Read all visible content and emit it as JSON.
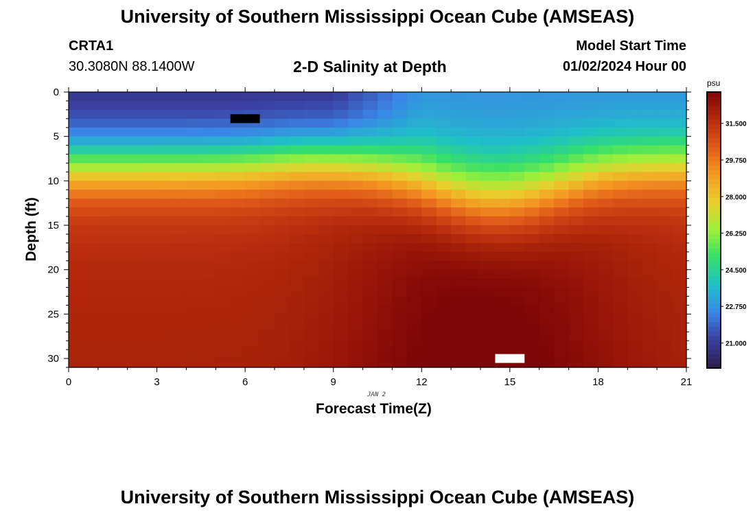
{
  "header": {
    "title": "University of Southern Mississippi Ocean Cube (AMSEAS)",
    "station": "CRTA1",
    "coordinates": "30.3080N  88.1400W",
    "plot_title": "2-D Salinity at Depth",
    "model_start_label": "Model Start Time",
    "model_start_value": "01/02/2024 Hour 00"
  },
  "footer": {
    "title": "University of Southern Mississippi Ocean Cube (AMSEAS)"
  },
  "chart_data": {
    "type": "heatmap",
    "title": "2-D Salinity at Depth",
    "xlabel": "Forecast Time(Z)",
    "ylabel": "Depth (ft)",
    "date_annotation": "JAN 2",
    "x_ticks": [
      "0",
      "3",
      "6",
      "9",
      "12",
      "15",
      "18",
      "21"
    ],
    "y_ticks": [
      "0",
      "5",
      "10",
      "15",
      "20",
      "25",
      "30"
    ],
    "xlim": [
      0,
      21
    ],
    "ylim": [
      0,
      31
    ],
    "y_inverted": true,
    "colorbar": {
      "unit": "psu",
      "ticks": [
        "31.500",
        "29.750",
        "28.000",
        "26.250",
        "24.500",
        "22.750",
        "21.000"
      ],
      "range": [
        19.8,
        33.0
      ]
    },
    "colors": {
      "stops": [
        "#2d1e4a",
        "#3a3d9e",
        "#3a86e6",
        "#1fc0c8",
        "#34df6a",
        "#9df03a",
        "#e9cf2e",
        "#f49b22",
        "#e25a1a",
        "#b82b0c",
        "#7d0606"
      ]
    },
    "grid_columns": 42,
    "grid_rows": 31,
    "salinity_profile_note": "values estimated per time step: surface layer ~20.5-22.5 psu, halocline ~8-17 ft, bottom ~32-32.8 psu",
    "missing_cells": [
      {
        "hour": 6,
        "depth": 3,
        "color": "#000000"
      },
      {
        "hour": 15,
        "depth": 30,
        "color": "#ffffff"
      }
    ]
  }
}
